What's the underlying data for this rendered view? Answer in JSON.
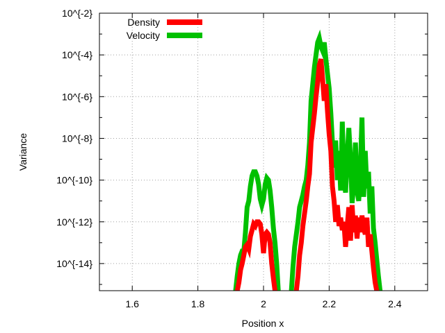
{
  "chart_data": {
    "type": "line",
    "title": "",
    "xlabel": "Position x",
    "ylabel": "Variance",
    "xlim": [
      1.5,
      2.5
    ],
    "ylog_exponent_range": [
      -15.3,
      -2
    ],
    "x_ticks": [
      {
        "value": 1.6,
        "label": "1.6"
      },
      {
        "value": 1.8,
        "label": "1.8"
      },
      {
        "value": 2.0,
        "label": "2"
      },
      {
        "value": 2.2,
        "label": "2.2"
      },
      {
        "value": 2.4,
        "label": "2.4"
      }
    ],
    "y_ticks": [
      {
        "exponent": -2,
        "label": "10^{-2}"
      },
      {
        "exponent": -4,
        "label": "10^{-4}"
      },
      {
        "exponent": -6,
        "label": "10^{-6}"
      },
      {
        "exponent": -8,
        "label": "10^{-8}"
      },
      {
        "exponent": -10,
        "label": "10^{-10}"
      },
      {
        "exponent": -12,
        "label": "10^{-12}"
      },
      {
        "exponent": -14,
        "label": "10^{-14}"
      }
    ],
    "grid": true,
    "legend_position": "top-left",
    "series": [
      {
        "name": "Density",
        "color": "#ff0000",
        "points": [
          [
            1.92,
            -15.3
          ],
          [
            1.925,
            -14.9
          ],
          [
            1.93,
            -14.3
          ],
          [
            1.935,
            -14.0
          ],
          [
            1.94,
            -13.6
          ],
          [
            1.945,
            -13.2
          ],
          [
            1.95,
            -13.1
          ],
          [
            1.955,
            -13.3
          ],
          [
            1.96,
            -12.7
          ],
          [
            1.965,
            -12.4
          ],
          [
            1.97,
            -12.1
          ],
          [
            1.975,
            -12.2
          ],
          [
            1.98,
            -12.0
          ],
          [
            1.985,
            -12.0
          ],
          [
            1.99,
            -12.1
          ],
          [
            1.995,
            -12.6
          ],
          [
            2.0,
            -13.5
          ],
          [
            2.005,
            -12.6
          ],
          [
            2.01,
            -12.5
          ],
          [
            2.015,
            -12.6
          ],
          [
            2.02,
            -13.0
          ],
          [
            2.025,
            -14.0
          ],
          [
            2.03,
            -14.7
          ],
          [
            2.035,
            -15.3
          ]
        ]
      },
      {
        "name": "Density",
        "color": "#ff0000",
        "points": [
          [
            2.1,
            -15.3
          ],
          [
            2.105,
            -14.6
          ],
          [
            2.11,
            -13.6
          ],
          [
            2.115,
            -13.0
          ],
          [
            2.12,
            -12.2
          ],
          [
            2.125,
            -11.6
          ],
          [
            2.13,
            -11.0
          ],
          [
            2.135,
            -10.3
          ],
          [
            2.14,
            -9.7
          ],
          [
            2.145,
            -8.2
          ],
          [
            2.15,
            -7.5
          ],
          [
            2.155,
            -6.8
          ],
          [
            2.16,
            -6.0
          ],
          [
            2.165,
            -5.3
          ],
          [
            2.17,
            -4.5
          ],
          [
            2.175,
            -4.2
          ],
          [
            2.18,
            -5.2
          ],
          [
            2.185,
            -6.2
          ],
          [
            2.19,
            -5.4
          ],
          [
            2.195,
            -6.7
          ],
          [
            2.2,
            -7.8
          ],
          [
            2.205,
            -8.6
          ],
          [
            2.21,
            -10.3
          ],
          [
            2.215,
            -11.0
          ],
          [
            2.22,
            -12.0
          ],
          [
            2.225,
            -11.2
          ],
          [
            2.23,
            -12.2
          ],
          [
            2.235,
            -11.8
          ],
          [
            2.24,
            -12.4
          ],
          [
            2.245,
            -12.0
          ],
          [
            2.25,
            -13.2
          ],
          [
            2.255,
            -12.2
          ],
          [
            2.26,
            -11.3
          ],
          [
            2.265,
            -12.9
          ],
          [
            2.27,
            -11.2
          ],
          [
            2.275,
            -12.5
          ],
          [
            2.28,
            -11.7
          ],
          [
            2.285,
            -12.8
          ],
          [
            2.29,
            -11.8
          ],
          [
            2.295,
            -12.5
          ],
          [
            2.3,
            -11.7
          ],
          [
            2.305,
            -12.3
          ],
          [
            2.31,
            -12.6
          ],
          [
            2.315,
            -11.8
          ],
          [
            2.32,
            -13.2
          ],
          [
            2.325,
            -12.6
          ],
          [
            2.33,
            -13.4
          ],
          [
            2.335,
            -14.2
          ],
          [
            2.34,
            -14.9
          ],
          [
            2.345,
            -15.3
          ]
        ]
      },
      {
        "name": "Velocity",
        "color": "#00c000",
        "points": [
          [
            1.915,
            -15.3
          ],
          [
            1.92,
            -14.6
          ],
          [
            1.925,
            -14.0
          ],
          [
            1.93,
            -13.6
          ],
          [
            1.935,
            -13.4
          ],
          [
            1.94,
            -13.4
          ],
          [
            1.945,
            -12.5
          ],
          [
            1.95,
            -11.3
          ],
          [
            1.955,
            -11.0
          ],
          [
            1.96,
            -10.3
          ],
          [
            1.965,
            -9.8
          ],
          [
            1.97,
            -9.6
          ],
          [
            1.975,
            -9.6
          ],
          [
            1.98,
            -9.8
          ],
          [
            1.985,
            -10.2
          ],
          [
            1.99,
            -10.9
          ],
          [
            1.995,
            -11.2
          ],
          [
            2.0,
            -10.9
          ],
          [
            2.005,
            -10.2
          ],
          [
            2.01,
            -9.9
          ],
          [
            2.015,
            -10.0
          ],
          [
            2.02,
            -10.5
          ],
          [
            2.025,
            -11.3
          ],
          [
            2.03,
            -12.3
          ],
          [
            2.035,
            -13.0
          ],
          [
            2.04,
            -14.0
          ],
          [
            2.045,
            -15.3
          ]
        ]
      },
      {
        "name": "Velocity",
        "color": "#00c000",
        "points": [
          [
            2.085,
            -15.3
          ],
          [
            2.09,
            -14.1
          ],
          [
            2.095,
            -13.2
          ],
          [
            2.1,
            -12.6
          ],
          [
            2.105,
            -12.0
          ],
          [
            2.11,
            -11.3
          ],
          [
            2.115,
            -11.0
          ],
          [
            2.12,
            -10.7
          ],
          [
            2.125,
            -10.3
          ],
          [
            2.13,
            -10.0
          ],
          [
            2.135,
            -9.3
          ],
          [
            2.14,
            -8.2
          ],
          [
            2.145,
            -6.2
          ],
          [
            2.15,
            -5.4
          ],
          [
            2.155,
            -4.6
          ],
          [
            2.16,
            -4.0
          ],
          [
            2.165,
            -3.4
          ],
          [
            2.17,
            -3.2
          ],
          [
            2.175,
            -3.6
          ],
          [
            2.18,
            -3.8
          ],
          [
            2.185,
            -3.4
          ],
          [
            2.19,
            -4.2
          ],
          [
            2.195,
            -4.9
          ],
          [
            2.2,
            -5.6
          ],
          [
            2.205,
            -6.8
          ],
          [
            2.21,
            -8.2
          ],
          [
            2.215,
            -9.4
          ],
          [
            2.22,
            -8.1
          ],
          [
            2.225,
            -10.0
          ],
          [
            2.23,
            -8.6
          ],
          [
            2.235,
            -10.5
          ],
          [
            2.24,
            -7.2
          ],
          [
            2.245,
            -9.8
          ],
          [
            2.25,
            -10.6
          ],
          [
            2.255,
            -8.8
          ],
          [
            2.26,
            -7.5
          ],
          [
            2.265,
            -9.0
          ],
          [
            2.27,
            -11.1
          ],
          [
            2.275,
            -10.2
          ],
          [
            2.28,
            -8.2
          ],
          [
            2.285,
            -10.5
          ],
          [
            2.29,
            -11.0
          ],
          [
            2.295,
            -9.6
          ],
          [
            2.3,
            -7.0
          ],
          [
            2.305,
            -10.8
          ],
          [
            2.31,
            -8.6
          ],
          [
            2.315,
            -10.4
          ],
          [
            2.32,
            -9.6
          ],
          [
            2.325,
            -11.6
          ],
          [
            2.33,
            -10.3
          ],
          [
            2.335,
            -12.3
          ],
          [
            2.34,
            -13.0
          ],
          [
            2.345,
            -13.8
          ],
          [
            2.35,
            -14.6
          ],
          [
            2.355,
            -15.3
          ]
        ]
      }
    ],
    "legend": [
      {
        "name": "Density",
        "color": "#ff0000"
      },
      {
        "name": "Velocity",
        "color": "#00c000"
      }
    ]
  }
}
